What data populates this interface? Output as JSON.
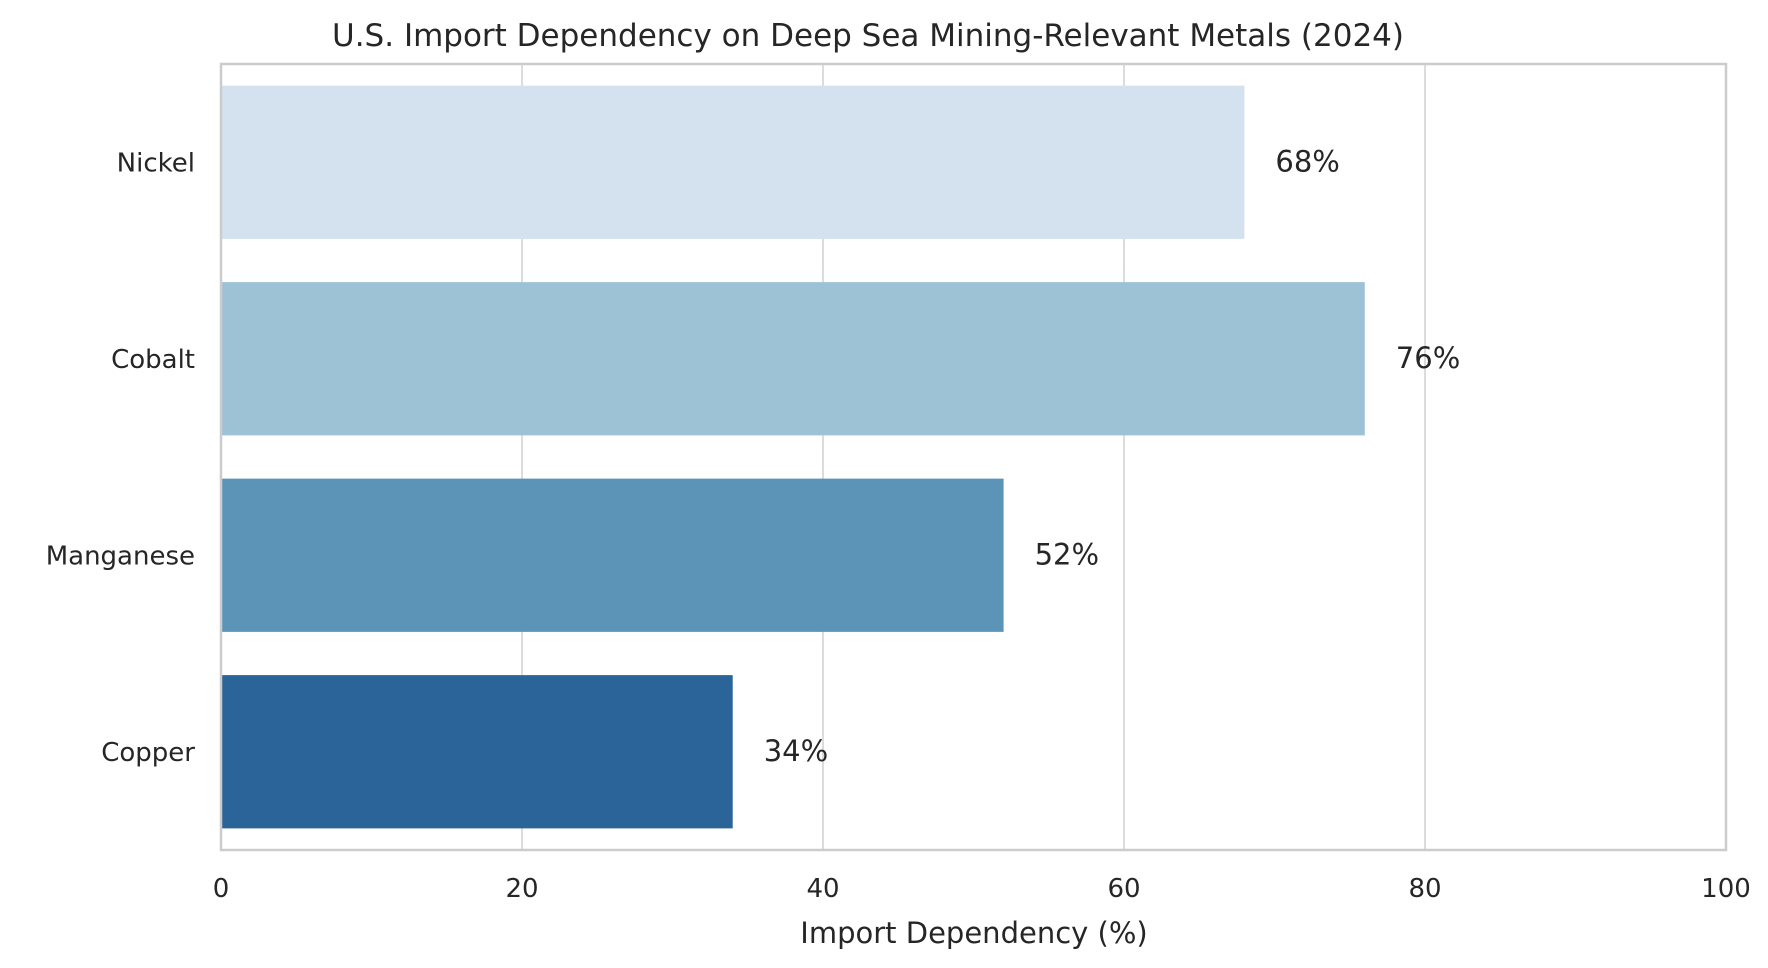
{
  "chart_data": {
    "type": "bar",
    "orientation": "horizontal",
    "title": "U.S. Import Dependency on Deep Sea Mining-Relevant Metals (2024)",
    "xlabel": "Import Dependency (%)",
    "ylabel": "",
    "xlim": [
      0,
      100
    ],
    "xticks": [
      0,
      20,
      40,
      60,
      80,
      100
    ],
    "grid": true,
    "categories": [
      "Nickel",
      "Cobalt",
      "Manganese",
      "Copper"
    ],
    "values": [
      68,
      76,
      52,
      34
    ],
    "value_labels": [
      "68%",
      "76%",
      "52%",
      "34%"
    ],
    "colors": [
      "#d4e2ef",
      "#9dc2d6",
      "#5c94b8",
      "#2a6498"
    ]
  }
}
